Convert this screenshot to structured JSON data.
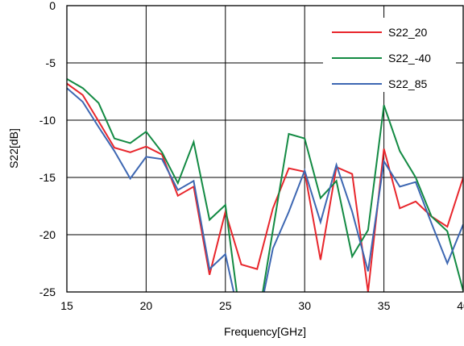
{
  "chart_data": {
    "type": "line",
    "title": "",
    "xlabel": "Frequency[GHz]",
    "ylabel": "S22[dB]",
    "xlim": [
      15,
      40
    ],
    "ylim": [
      -25,
      0
    ],
    "x_ticks": [
      15,
      20,
      25,
      30,
      35,
      40
    ],
    "y_ticks": [
      0,
      -5,
      -10,
      -15,
      -20,
      -25
    ],
    "x_tick_labels": [
      "15",
      "20",
      "25",
      "30",
      "35",
      "40"
    ],
    "y_tick_labels": [
      "0",
      "-5",
      "-10",
      "-15",
      "-20",
      "-25"
    ],
    "grid": true,
    "legend_position": "top-right",
    "x": [
      15,
      16,
      17,
      18,
      19,
      20,
      21,
      22,
      23,
      24,
      25,
      26,
      27,
      28,
      29,
      30,
      31,
      32,
      33,
      34,
      35,
      36,
      37,
      38,
      39,
      40
    ],
    "series": [
      {
        "name": "S22_20",
        "color": "#e8262c",
        "values": [
          -6.8,
          -7.8,
          -10.1,
          -12.4,
          -12.8,
          -12.3,
          -13.0,
          -16.6,
          -15.8,
          -23.5,
          -18.0,
          -22.6,
          -23.0,
          -17.7,
          -14.2,
          -14.5,
          -22.2,
          -14.1,
          -14.7,
          -25.0,
          -12.5,
          -17.7,
          -17.1,
          -18.4,
          -19.3,
          -15.0
        ]
      },
      {
        "name": "S22_-40",
        "color": "#138a43",
        "values": [
          -6.4,
          -7.2,
          -8.5,
          -11.6,
          -12.0,
          -11.0,
          -12.8,
          -15.5,
          -11.9,
          -18.7,
          -17.4,
          -28.0,
          -28.0,
          -19.6,
          -11.2,
          -11.6,
          -16.8,
          -15.3,
          -21.9,
          -19.6,
          -8.7,
          -12.7,
          -15.0,
          -18.4,
          -19.7,
          -24.9
        ]
      },
      {
        "name": "S22_85",
        "color": "#3d67b2",
        "values": [
          -7.2,
          -8.4,
          -10.6,
          -12.7,
          -15.1,
          -13.2,
          -13.4,
          -16.1,
          -15.3,
          -23.0,
          -21.7,
          -28.0,
          -28.0,
          -21.2,
          -18.0,
          -14.4,
          -18.9,
          -13.9,
          -18.0,
          -23.2,
          -13.6,
          -15.8,
          -15.4,
          -19.0,
          -22.5,
          -19.1
        ]
      }
    ]
  }
}
